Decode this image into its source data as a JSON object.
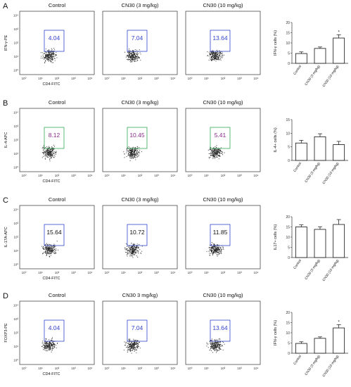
{
  "colors": {
    "gate_blue": "#3344cc",
    "gate_green": "#33aa55",
    "value_blue": "#3344cc",
    "value_purple": "#8a2a8a",
    "value_black": "#111111",
    "dots": "#222222",
    "axis": "#333333"
  },
  "panels": [
    {
      "letter": "A",
      "row_top": 0,
      "plots": [
        {
          "title": "Control",
          "value": "4.04"
        },
        {
          "title": "CN30 (3 mg/kg)",
          "value": "7.04"
        },
        {
          "title": "CN30 (10 mg/kg)",
          "value": "13.64"
        }
      ],
      "ylabel": "IFN-γ-PE",
      "xlabel": "CD4-FITC",
      "gate_color": "gate_blue",
      "value_color": "value_blue",
      "ticks": [
        "10⁰",
        "10¹",
        "10²",
        "10³",
        "10⁴"
      ],
      "bar": {
        "ylabel": "IFN-γ  cells (%)",
        "yticks": [
          "0",
          "5",
          "10",
          "15",
          "20"
        ],
        "ymax": 20,
        "categories": [
          "Control",
          "CN30 (3 mg/kg)",
          "CN30 (10 mg/kg)"
        ],
        "values": [
          4.8,
          7.3,
          12.4
        ],
        "errors": [
          0.8,
          0.7,
          1.6
        ],
        "stars": [
          "",
          "",
          "*"
        ]
      }
    },
    {
      "letter": "B",
      "row_top": 138,
      "plots": [
        {
          "title": "Control",
          "value": "8.12"
        },
        {
          "title": "CN30 (3 mg/kg)",
          "value": "10.45"
        },
        {
          "title": "CN30 (10 mg/kg)",
          "value": "5.41"
        }
      ],
      "ylabel": "IL-4-APC",
      "xlabel": "CD4-FITC",
      "gate_color": "gate_green",
      "value_color": "value_purple",
      "ticks": [
        "10⁰",
        "10¹",
        "10²",
        "10³",
        "10⁴"
      ],
      "bar": {
        "ylabel": "IL-4+ cells (%)",
        "yticks": [
          "0",
          "5",
          "10",
          "15"
        ],
        "ymax": 15,
        "categories": [
          "Control",
          "CN30 (3 mg/kg)",
          "CN30 (10 mg/kg)"
        ],
        "values": [
          6.4,
          8.7,
          5.8
        ],
        "errors": [
          1.0,
          1.1,
          1.2
        ],
        "stars": [
          "",
          "",
          ""
        ]
      }
    },
    {
      "letter": "C",
      "row_top": 276,
      "plots": [
        {
          "title": "Control",
          "value": "15.64"
        },
        {
          "title": "CN30 (3 mg/kg)",
          "value": "10.72"
        },
        {
          "title": "CN30 (10 mg/kg)",
          "value": "11.85"
        }
      ],
      "ylabel": "IL-17A-APC",
      "xlabel": "CD4-FITC",
      "gate_color": "gate_blue",
      "value_color": "value_black",
      "ticks": [
        "10⁰",
        "10¹",
        "10²",
        "10³",
        "10⁴"
      ],
      "bar": {
        "ylabel": "IL17+ cells (%)",
        "yticks": [
          "0",
          "5",
          "10",
          "15",
          "20"
        ],
        "ymax": 20,
        "categories": [
          "Control",
          "CN30 (3 mg/kg)",
          "CN30 (10 mg/kg)"
        ],
        "values": [
          15.0,
          13.8,
          16.2
        ],
        "errors": [
          1.0,
          1.3,
          2.4
        ],
        "stars": [
          "",
          "",
          ""
        ]
      }
    },
    {
      "letter": "D",
      "row_top": 412,
      "plots": [
        {
          "title": "Control",
          "value": "4.04"
        },
        {
          "title": "CN30 3 mg/kg)",
          "value": "7.04"
        },
        {
          "title": "CN30 (10 mg/kg)",
          "value": "13.64"
        }
      ],
      "ylabel": "FOXP3-PE",
      "xlabel": "CD4-FITC",
      "gate_color": "gate_blue",
      "value_color": "value_blue",
      "ticks": [
        "10⁰",
        "10¹",
        "10²",
        "10³",
        "10⁴"
      ],
      "bar": {
        "ylabel": "IFN-γ  cells (%)",
        "yticks": [
          "0",
          "5",
          "10",
          "15",
          "20"
        ],
        "ymax": 20,
        "categories": [
          "Control",
          "CN30 (3 mg/kg)",
          "CN30 (10 mg/kg)"
        ],
        "values": [
          4.8,
          7.3,
          12.4
        ],
        "errors": [
          0.8,
          0.7,
          1.6
        ],
        "stars": [
          "",
          "",
          "*"
        ]
      }
    }
  ],
  "chart_data": [
    {
      "type": "bar",
      "ylabel": "IFN-γ  cells (%)",
      "categories": [
        "Control",
        "CN30 (3 mg/kg)",
        "CN30 (10 mg/kg)"
      ],
      "values": [
        4.8,
        7.3,
        12.4
      ],
      "ylim": [
        0,
        20
      ]
    },
    {
      "type": "bar",
      "ylabel": "IL-4+ cells (%)",
      "categories": [
        "Control",
        "CN30 (3 mg/kg)",
        "CN30 (10 mg/kg)"
      ],
      "values": [
        6.4,
        8.7,
        5.8
      ],
      "ylim": [
        0,
        15
      ]
    },
    {
      "type": "bar",
      "ylabel": "IL17+ cells (%)",
      "categories": [
        "Control",
        "CN30 (3 mg/kg)",
        "CN30 (10 mg/kg)"
      ],
      "values": [
        15.0,
        13.8,
        16.2
      ],
      "ylim": [
        0,
        20
      ]
    },
    {
      "type": "bar",
      "ylabel": "IFN-γ  cells (%)",
      "categories": [
        "Control",
        "CN30 (3 mg/kg)",
        "CN30 (10 mg/kg)"
      ],
      "values": [
        4.8,
        7.3,
        12.4
      ],
      "ylim": [
        0,
        20
      ]
    }
  ]
}
